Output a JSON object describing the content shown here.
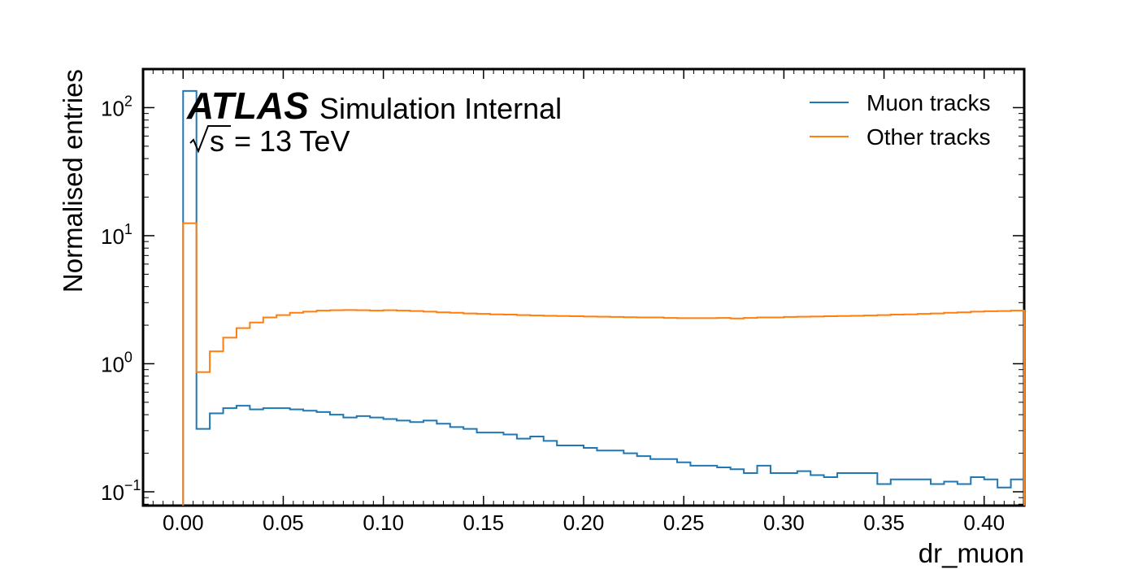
{
  "chart_data": {
    "type": "line",
    "histogram": true,
    "xlabel": "dr_muon",
    "ylabel": "Normalised entries",
    "xlim": [
      -0.02,
      0.42
    ],
    "ylim": [
      0.078,
      200
    ],
    "yscale": "log",
    "xticks": [
      "0.00",
      "0.05",
      "0.10",
      "0.15",
      "0.20",
      "0.25",
      "0.30",
      "0.35",
      "0.40"
    ],
    "yticks": [
      {
        "base": "10",
        "exp": "−1"
      },
      {
        "base": "10",
        "exp": "0"
      },
      {
        "base": "10",
        "exp": "1"
      },
      {
        "base": "10",
        "exp": "2"
      }
    ],
    "label": {
      "atlas": "ATLAS",
      "status": "Simulation Internal",
      "energy_sqrt": "s",
      "energy_rest": "= 13 TeV"
    },
    "legend_position": "top-right",
    "bin_edges_start": 0.0,
    "bin_width": 0.0066667,
    "series": [
      {
        "name": "Muon tracks",
        "color": "#1f77b4",
        "values": [
          135,
          0.31,
          0.41,
          0.45,
          0.47,
          0.44,
          0.45,
          0.45,
          0.44,
          0.43,
          0.42,
          0.4,
          0.38,
          0.39,
          0.38,
          0.37,
          0.36,
          0.35,
          0.36,
          0.34,
          0.32,
          0.31,
          0.29,
          0.29,
          0.28,
          0.26,
          0.27,
          0.25,
          0.23,
          0.23,
          0.22,
          0.21,
          0.21,
          0.2,
          0.19,
          0.18,
          0.18,
          0.17,
          0.16,
          0.16,
          0.155,
          0.15,
          0.14,
          0.16,
          0.14,
          0.14,
          0.145,
          0.135,
          0.13,
          0.14,
          0.14,
          0.14,
          0.115,
          0.125,
          0.125,
          0.125,
          0.115,
          0.12,
          0.115,
          0.13,
          0.125,
          0.108,
          0.125
        ]
      },
      {
        "name": "Other tracks",
        "color": "#ff7f0e",
        "values": [
          12.5,
          0.86,
          1.25,
          1.6,
          1.9,
          2.1,
          2.3,
          2.4,
          2.5,
          2.55,
          2.6,
          2.62,
          2.63,
          2.62,
          2.6,
          2.62,
          2.6,
          2.58,
          2.55,
          2.52,
          2.5,
          2.47,
          2.45,
          2.43,
          2.42,
          2.4,
          2.38,
          2.37,
          2.36,
          2.35,
          2.34,
          2.33,
          2.32,
          2.31,
          2.3,
          2.3,
          2.28,
          2.27,
          2.27,
          2.27,
          2.28,
          2.26,
          2.28,
          2.3,
          2.3,
          2.32,
          2.33,
          2.34,
          2.35,
          2.36,
          2.37,
          2.38,
          2.4,
          2.42,
          2.43,
          2.45,
          2.47,
          2.5,
          2.52,
          2.55,
          2.57,
          2.58,
          2.6
        ]
      }
    ]
  }
}
